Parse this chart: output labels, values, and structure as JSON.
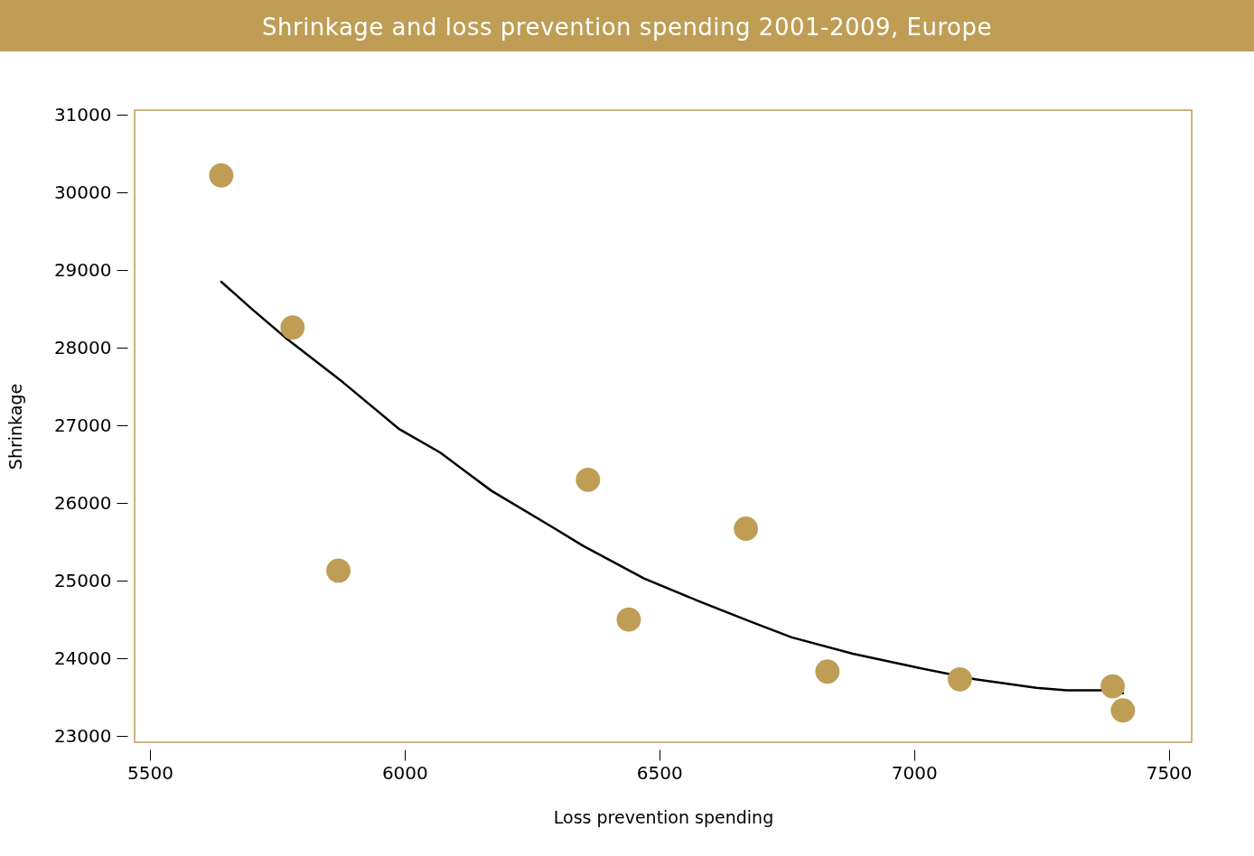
{
  "chart_data": {
    "type": "scatter",
    "title": "Shrinkage and loss prevention spending 2001-2009, Europe",
    "xlabel": "Loss prevention spending",
    "ylabel": "Shrinkage",
    "xlim": [
      5470,
      7545
    ],
    "xticks": [
      5500,
      6000,
      6500,
      7000,
      7500
    ],
    "ylim": [
      22920,
      31060
    ],
    "yticks": [
      23000,
      24000,
      25000,
      26000,
      27000,
      28000,
      29000,
      30000,
      31000
    ],
    "grid": false,
    "marker": "circle",
    "series": [
      {
        "type": "line",
        "color": "#000000",
        "line_style": "solid",
        "marker": "none",
        "x": [
          5640,
          5700,
          5770,
          5880,
          5990,
          6070,
          6170,
          6290,
          6350,
          6470,
          6580,
          6680,
          6760,
          6880,
          7000,
          7120,
          7240,
          7300,
          7370,
          7410
        ],
        "values": [
          28850,
          28500,
          28110,
          27550,
          26950,
          26650,
          26160,
          25690,
          25450,
          25030,
          24730,
          24470,
          24270,
          24060,
          23890,
          23730,
          23620,
          23590,
          23590,
          23550
        ]
      },
      {
        "color": "#bf9d55",
        "x": [
          5640,
          5780,
          5870,
          6360,
          6440,
          6670,
          6830,
          7090,
          7390,
          7410
        ],
        "values": [
          30220,
          28260,
          25130,
          26300,
          24500,
          25670,
          23830,
          23730,
          23640,
          23330
        ]
      }
    ]
  }
}
